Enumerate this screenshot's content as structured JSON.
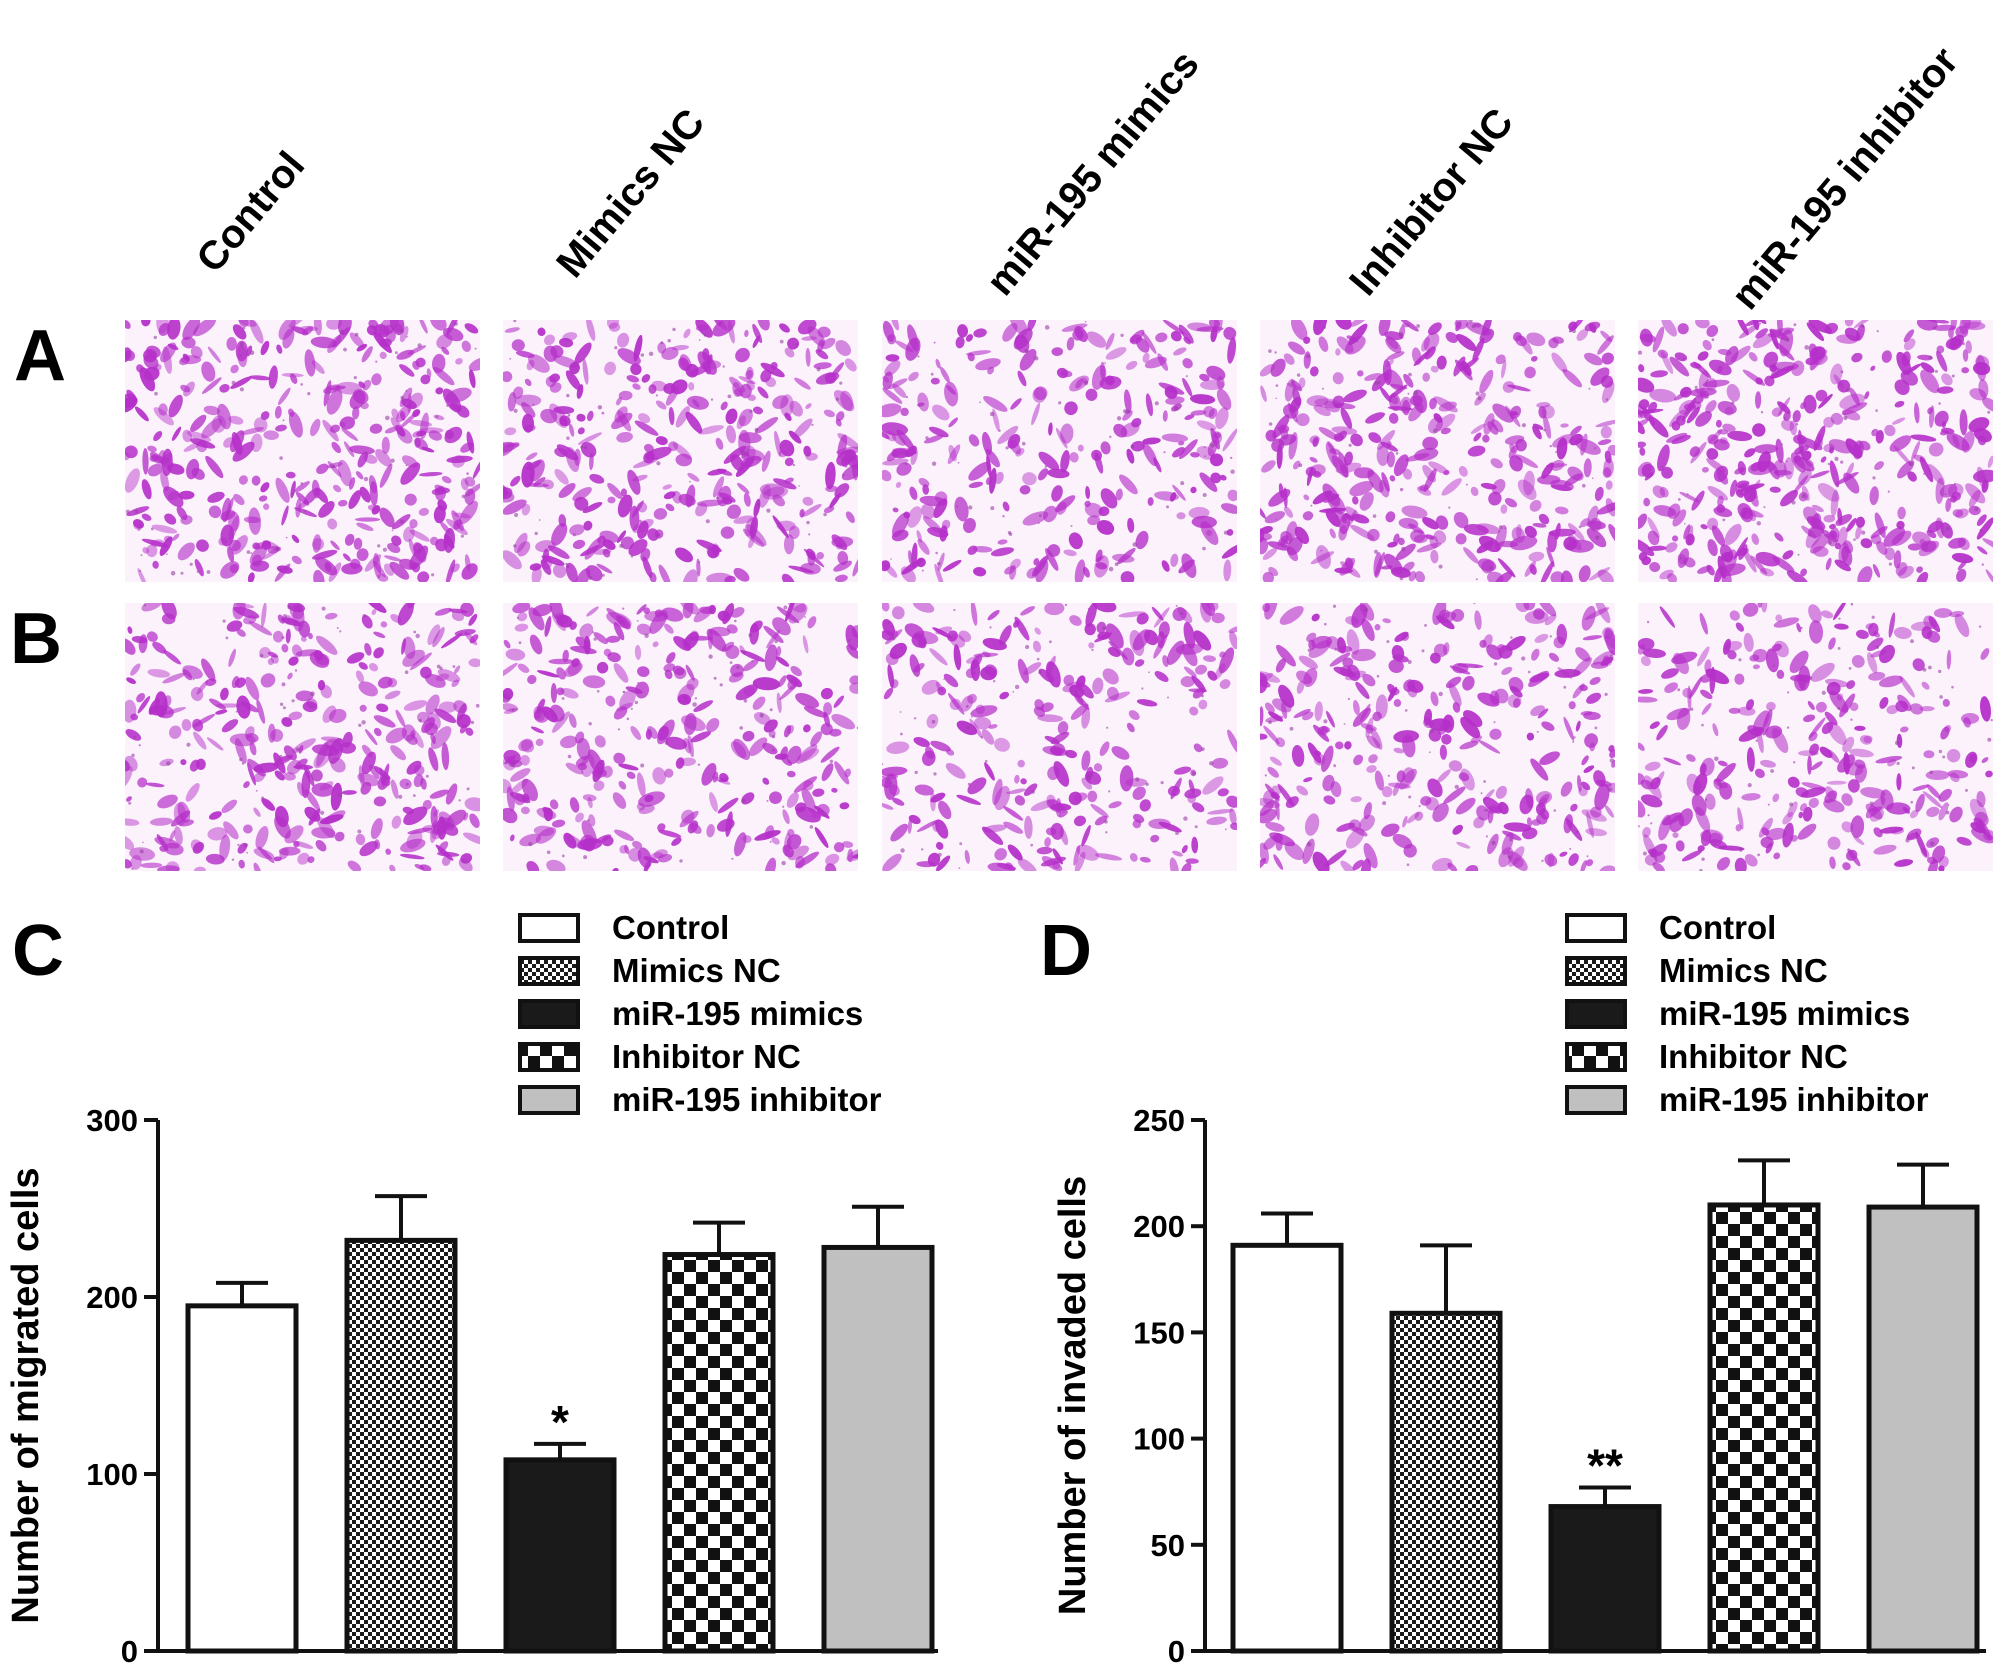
{
  "figure": {
    "columns": [
      "Control",
      "Mimics NC",
      "miR-195 mimics",
      "Inhibitor NC",
      "miR-195 inhibitor"
    ],
    "panel_labels": {
      "A": "A",
      "B": "B",
      "C": "C",
      "D": "D"
    },
    "stain_color": "#b52fc9",
    "micrograph_density": {
      "A": [
        0.85,
        0.7,
        0.45,
        0.8,
        1.0
      ],
      "B": [
        0.7,
        0.65,
        0.45,
        0.6,
        0.5
      ]
    }
  },
  "chart_data": [
    {
      "type": "bar",
      "panel": "C",
      "categories": [
        "Control",
        "Mimics NC",
        "miR-195 mimics",
        "Inhibitor NC",
        "miR-195 inhibitor"
      ],
      "values": [
        195,
        232,
        108,
        224,
        228
      ],
      "errors": [
        13,
        25,
        9,
        18,
        23
      ],
      "significance": [
        "",
        "",
        "*",
        "",
        ""
      ],
      "ylabel": "Number of migrated cells",
      "xlabel": "",
      "ylim": [
        0,
        300
      ],
      "yticks": [
        0,
        100,
        200,
        300
      ],
      "legend": [
        "Control",
        "Mimics NC",
        "miR-195 mimics",
        "Inhibitor NC",
        "miR-195 inhibitor"
      ],
      "legend_position": "top-right",
      "grid": false
    },
    {
      "type": "bar",
      "panel": "D",
      "categories": [
        "Control",
        "Mimics NC",
        "miR-195 mimics",
        "Inhibitor NC",
        "miR-195 inhibitor"
      ],
      "values": [
        191,
        159,
        68,
        210,
        209
      ],
      "errors": [
        15,
        32,
        9,
        21,
        20
      ],
      "significance": [
        "",
        "",
        "**",
        "",
        ""
      ],
      "ylabel": "Number of invaded cells",
      "xlabel": "",
      "ylim": [
        0,
        250
      ],
      "yticks": [
        0,
        50,
        100,
        150,
        200,
        250
      ],
      "legend": [
        "Control",
        "Mimics NC",
        "miR-195 mimics",
        "Inhibitor NC",
        "miR-195 inhibitor"
      ],
      "legend_position": "top-right",
      "grid": false
    }
  ]
}
